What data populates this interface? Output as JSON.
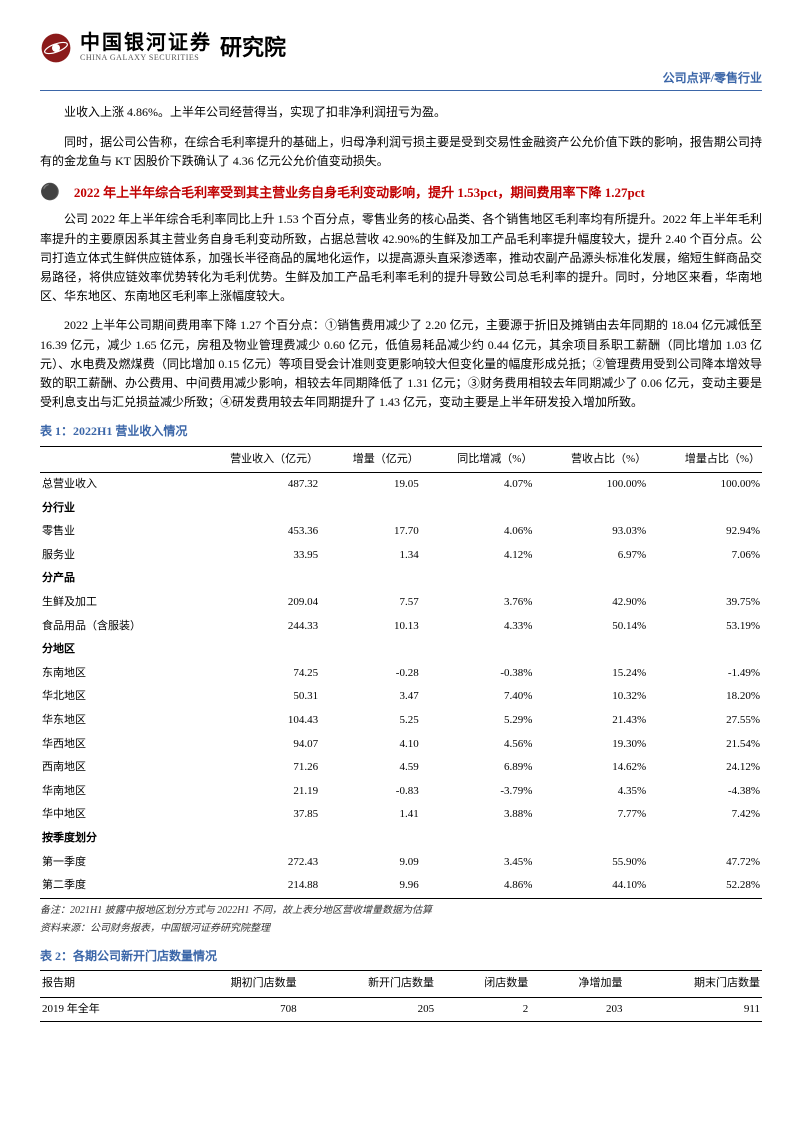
{
  "header": {
    "brand_cn": "中国银河证券",
    "brand_en": "CHINA GALAXY SECURITIES",
    "institute": "研究院",
    "right": "公司点评/零售行业",
    "logo_color_outer": "#8b1a1a",
    "logo_color_inner": "#c0392b"
  },
  "para1": "业收入上涨 4.86%。上半年公司经营得当，实现了扣非净利润扭亏为盈。",
  "para2": "同时，据公司公告称，在综合毛利率提升的基础上，归母净利润亏损主要是受到交易性金融资产公允价值下跌的影响，报告期公司持有的金龙鱼与 KT 因股价下跌确认了 4.36 亿元公允价值变动损失。",
  "section1_title": "2022 年上半年综合毛利率受到其主营业务自身毛利变动影响，提升 1.53pct，期间费用率下降 1.27pct",
  "para3": "公司 2022 年上半年综合毛利率同比上升 1.53 个百分点，零售业务的核心品类、各个销售地区毛利率均有所提升。2022 年上半年毛利率提升的主要原因系其主营业务自身毛利变动所致，占据总营收 42.90%的生鲜及加工产品毛利率提升幅度较大，提升 2.40 个百分点。公司打造立体式生鲜供应链体系，加强长半径商品的属地化运作，以提高源头直采渗透率，推动农副产品源头标准化发展，缩短生鲜商品交易路径，将供应链效率优势转化为毛利优势。生鲜及加工产品毛利率毛利的提升导致公司总毛利率的提升。同时，分地区来看，华南地区、华东地区、东南地区毛利率上涨幅度较大。",
  "para4": "2022 上半年公司期间费用率下降 1.27 个百分点：①销售费用减少了 2.20 亿元，主要源于折旧及摊销由去年同期的 18.04 亿元减低至 16.39 亿元，减少 1.65 亿元，房租及物业管理费减少 0.60 亿元，低值易耗品减少约 0.44 亿元，其余项目系职工薪酬（同比增加 1.03 亿元）、水电费及燃煤费（同比增加 0.15 亿元）等项目受会计准则变更影响较大但变化量的幅度形成兑抵；②管理费用受到公司降本增效导致的职工薪酬、办公费用、中间费用减少影响，相较去年同期降低了 1.31 亿元；③财务费用相较去年同期减少了 0.06 亿元，变动主要是受利息支出与汇兑损益减少所致；④研发费用较去年同期提升了 1.43 亿元，变动主要是上半年研发投入增加所致。",
  "table1": {
    "title": "表 1：2022H1 营业收入情况",
    "columns": [
      "",
      "营业收入（亿元）",
      "增量（亿元）",
      "同比增减（%）",
      "营收占比（%）",
      "增量占比（%）"
    ],
    "total_label": "总营业收入",
    "total_row": [
      "487.32",
      "19.05",
      "4.07%",
      "100.00%",
      "100.00%"
    ],
    "sub_industry": "分行业",
    "rows_industry": [
      [
        "零售业",
        "453.36",
        "17.70",
        "4.06%",
        "93.03%",
        "92.94%"
      ],
      [
        "服务业",
        "33.95",
        "1.34",
        "4.12%",
        "6.97%",
        "7.06%"
      ]
    ],
    "sub_product": "分产品",
    "rows_product": [
      [
        "生鲜及加工",
        "209.04",
        "7.57",
        "3.76%",
        "42.90%",
        "39.75%"
      ],
      [
        "食品用品（含服装）",
        "244.33",
        "10.13",
        "4.33%",
        "50.14%",
        "53.19%"
      ]
    ],
    "sub_region": "分地区",
    "rows_region": [
      [
        "东南地区",
        "74.25",
        "-0.28",
        "-0.38%",
        "15.24%",
        "-1.49%"
      ],
      [
        "华北地区",
        "50.31",
        "3.47",
        "7.40%",
        "10.32%",
        "18.20%"
      ],
      [
        "华东地区",
        "104.43",
        "5.25",
        "5.29%",
        "21.43%",
        "27.55%"
      ],
      [
        "华西地区",
        "94.07",
        "4.10",
        "4.56%",
        "19.30%",
        "21.54%"
      ],
      [
        "西南地区",
        "71.26",
        "4.59",
        "6.89%",
        "14.62%",
        "24.12%"
      ],
      [
        "华南地区",
        "21.19",
        "-0.83",
        "-3.79%",
        "4.35%",
        "-4.38%"
      ],
      [
        "华中地区",
        "37.85",
        "1.41",
        "3.88%",
        "7.77%",
        "7.42%"
      ]
    ],
    "sub_quarter": "按季度划分",
    "rows_quarter": [
      [
        "第一季度",
        "272.43",
        "9.09",
        "3.45%",
        "55.90%",
        "47.72%"
      ],
      [
        "第二季度",
        "214.88",
        "9.96",
        "4.86%",
        "44.10%",
        "52.28%"
      ]
    ],
    "note": "备注：2021H1 披露中报地区划分方式与 2022H1 不同，故上表分地区营收增量数据为估算",
    "source": "资料来源：公司财务报表，中国银河证券研究院整理"
  },
  "table2": {
    "title": "表 2：各期公司新开门店数量情况",
    "columns": [
      "报告期",
      "期初门店数量",
      "新开门店数量",
      "闭店数量",
      "净增加量",
      "期末门店数量"
    ],
    "rows": [
      [
        "2019 年全年",
        "708",
        "205",
        "2",
        "203",
        "911"
      ]
    ]
  },
  "colors": {
    "accent_blue": "#3b66a8",
    "accent_red": "#c00000",
    "border": "#000000"
  }
}
